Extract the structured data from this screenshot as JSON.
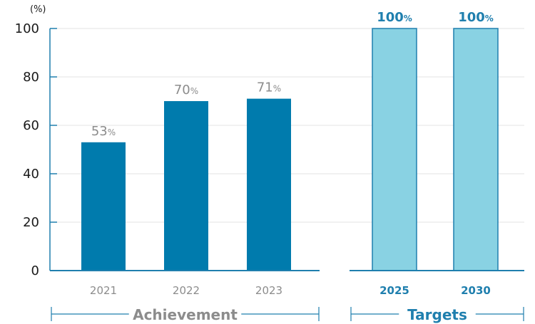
{
  "chart_data": {
    "type": "bar",
    "ylabel": "(%)",
    "ylim": [
      0,
      100
    ],
    "yticks": [
      0,
      20,
      40,
      60,
      80,
      100
    ],
    "grid": true,
    "value_suffix": "%",
    "groups": [
      {
        "name": "Achievement",
        "categories": [
          "2021",
          "2022",
          "2023"
        ],
        "values": [
          53,
          70,
          71
        ],
        "color": "#007bad",
        "label_color": "#8c8c8c"
      },
      {
        "name": "Targets",
        "categories": [
          "2025",
          "2030"
        ],
        "values": [
          100,
          100
        ],
        "color": "#89d2e3",
        "edge_color": "#1f7fae",
        "label_color": "#1f7fae"
      }
    ]
  }
}
